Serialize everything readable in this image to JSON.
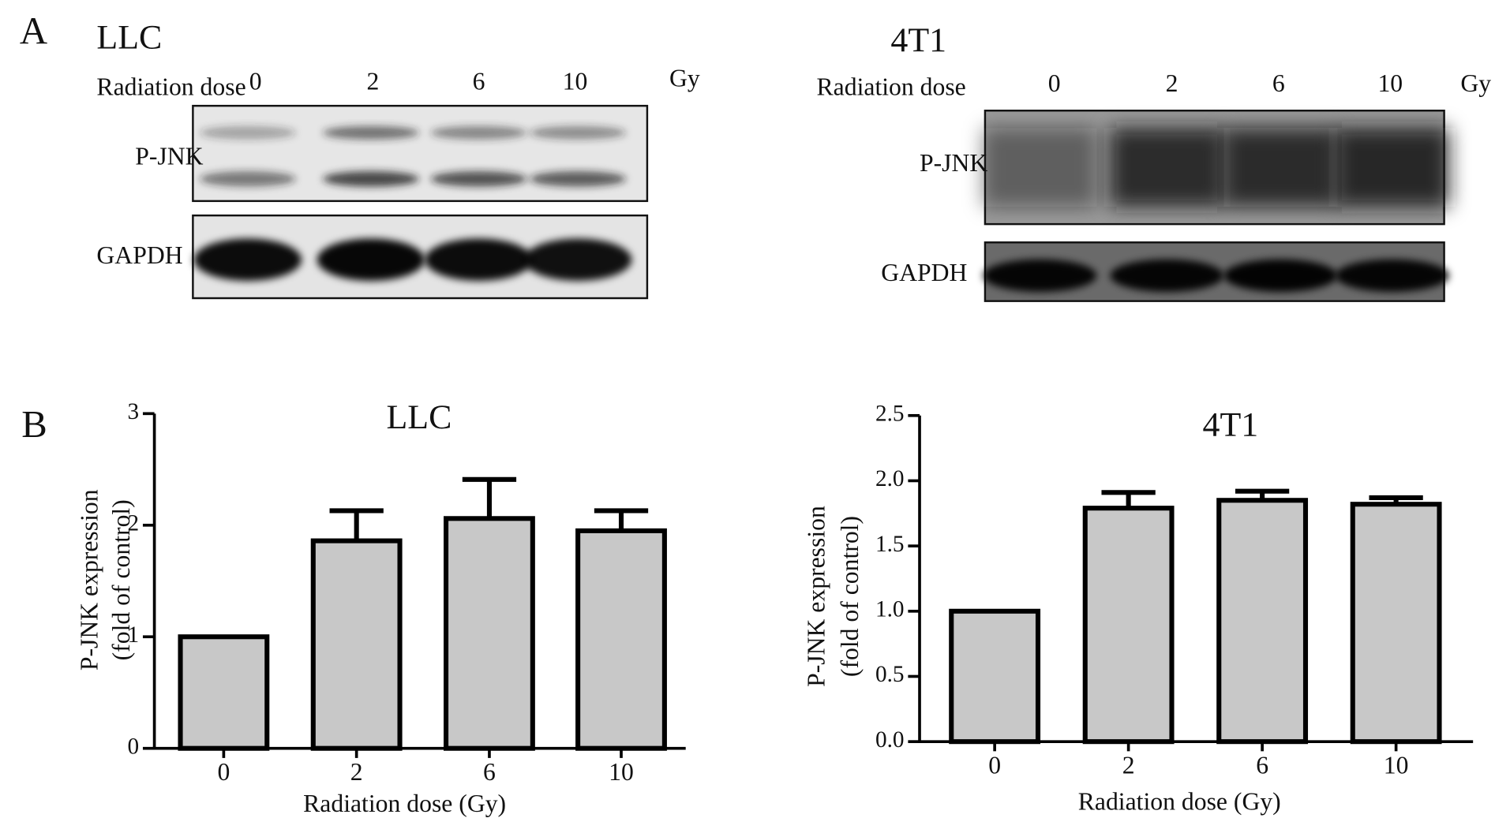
{
  "panel_a": {
    "label": "A",
    "blots": [
      {
        "title": "LLC",
        "dose_label": "Radiation dose",
        "doses": [
          "0",
          "2",
          "6",
          "10"
        ],
        "unit": "Gy",
        "rows": [
          "P-JNK",
          "GAPDH"
        ]
      },
      {
        "title": "4T1",
        "dose_label": "Radiation dose",
        "doses": [
          "0",
          "2",
          "6",
          "10"
        ],
        "unit": "Gy",
        "rows": [
          "P-JNK",
          "GAPDH"
        ]
      }
    ]
  },
  "panel_b": {
    "label": "B"
  },
  "chart_data": [
    {
      "type": "bar",
      "title": "LLC",
      "x_label": "Radiation dose (Gy)",
      "y_label": [
        "P-JNK expression",
        "(fold of control)"
      ],
      "categories": [
        "0",
        "2",
        "6",
        "10"
      ],
      "values": [
        1.0,
        1.86,
        2.06,
        1.95
      ],
      "errors": [
        0,
        0.27,
        0.35,
        0.18
      ],
      "color": "#c8c8c8",
      "ylim": [
        0,
        3
      ],
      "yticks": [
        0,
        1,
        2,
        3
      ]
    },
    {
      "type": "bar",
      "title": "4T1",
      "x_label": "Radiation dose (Gy)",
      "y_label": [
        "P-JNK expression",
        "(fold of control)"
      ],
      "categories": [
        "0",
        "2",
        "6",
        "10"
      ],
      "values": [
        1.0,
        1.79,
        1.85,
        1.82
      ],
      "errors": [
        0,
        0.12,
        0.07,
        0.05
      ],
      "color": "#c8c8c8",
      "ylim": [
        0,
        2.5
      ],
      "yticks": [
        {
          "value": 0,
          "label": "0.0"
        },
        0.5,
        {
          "value": 1,
          "label": "1.0"
        },
        1.5,
        {
          "value": 2,
          "label": "2.0"
        },
        2.5
      ]
    }
  ]
}
